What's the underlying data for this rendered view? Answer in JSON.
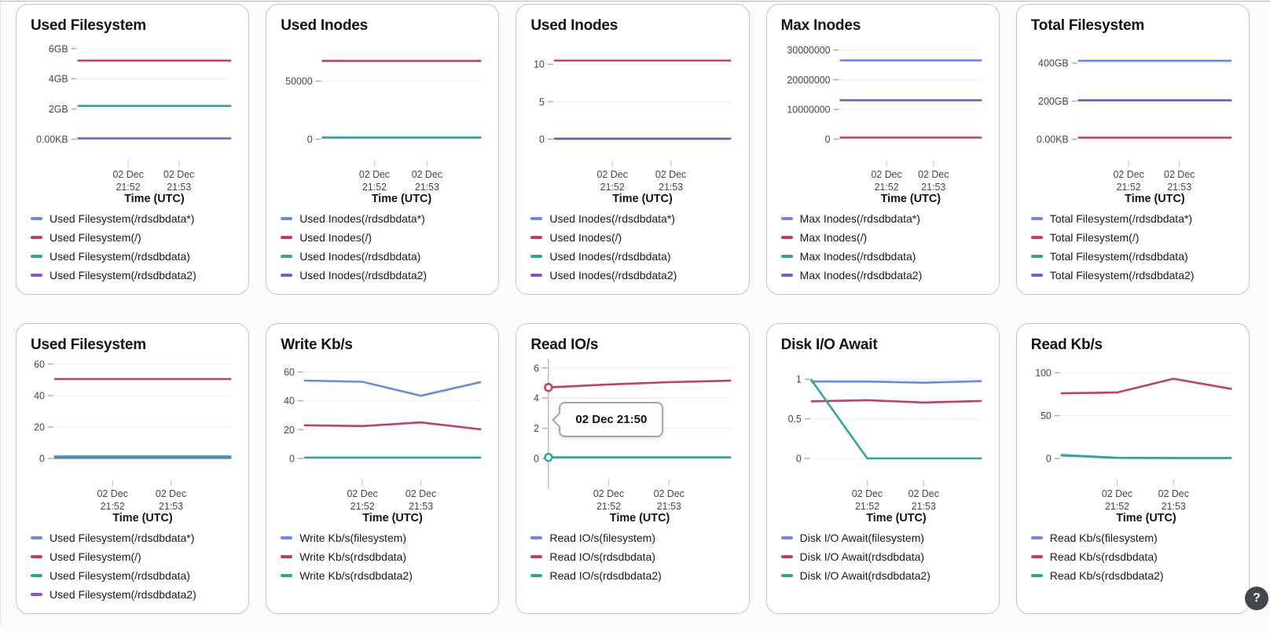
{
  "palette": {
    "blue": "#688AE8",
    "red": "#C33D69",
    "teal": "#2EA597",
    "purple": "#8456CE"
  },
  "x_axis": {
    "title": "Time (UTC)",
    "ticks": [
      {
        "line1": "02 Dec",
        "line2": "21:52"
      },
      {
        "line1": "02 Dec",
        "line2": "21:53"
      }
    ]
  },
  "help_button": {
    "label": "?"
  },
  "chart_data": [
    {
      "type": "line",
      "title": "Used Filesystem",
      "y_max": 6.3,
      "y_ticks": [
        {
          "label": "6GB",
          "value": 6
        },
        {
          "label": "4GB",
          "value": 4
        },
        {
          "label": "2GB",
          "value": 2
        },
        {
          "label": "0.00KB",
          "value": 0
        }
      ],
      "series": [
        {
          "name": "Used Filesystem(/rdsdbdata*)",
          "color": "blue",
          "z": 0,
          "values": [
            0.05,
            0.05,
            0.05,
            0.05
          ]
        },
        {
          "name": "Used Filesystem(/)",
          "color": "red",
          "z": 1,
          "values": [
            5.2,
            5.2,
            5.2,
            5.2
          ]
        },
        {
          "name": "Used Filesystem(/rdsdbdata)",
          "color": "teal",
          "z": 2,
          "values": [
            2.2,
            2.2,
            2.2,
            2.2
          ]
        },
        {
          "name": "Used Filesystem(/rdsdbdata2)",
          "color": "purple",
          "z": 3,
          "values": [
            0.05,
            0.05,
            0.05,
            0.05
          ]
        }
      ]
    },
    {
      "type": "line",
      "title": "Used Inodes",
      "y_max": 82000,
      "y_ticks": [
        {
          "label": "50000",
          "value": 50000
        },
        {
          "label": "0",
          "value": 0
        }
      ],
      "series": [
        {
          "name": "Used Inodes(/rdsdbdata*)",
          "color": "blue",
          "z": 0,
          "values": [
            1500,
            1500,
            1500,
            1500
          ]
        },
        {
          "name": "Used Inodes(/)",
          "color": "red",
          "z": 2,
          "values": [
            67500,
            67500,
            67500,
            67500
          ]
        },
        {
          "name": "Used Inodes(/rdsdbdata)",
          "color": "teal",
          "z": 3,
          "values": [
            1500,
            1500,
            1500,
            1500
          ]
        },
        {
          "name": "Used Inodes(/rdsdbdata2)",
          "color": "purple",
          "z": 1,
          "values": [
            1500,
            1500,
            1500,
            1500
          ]
        }
      ]
    },
    {
      "type": "line",
      "title": "Used Inodes",
      "y_max": 12.7,
      "y_ticks": [
        {
          "label": "10",
          "value": 10
        },
        {
          "label": "5",
          "value": 5
        },
        {
          "label": "0",
          "value": 0
        }
      ],
      "series": [
        {
          "name": "Used Inodes(/rdsdbdata*)",
          "color": "blue",
          "z": 0,
          "values": [
            0.07,
            0.07,
            0.07,
            0.07
          ]
        },
        {
          "name": "Used Inodes(/)",
          "color": "red",
          "z": 2,
          "values": [
            10.5,
            10.5,
            10.5,
            10.5
          ]
        },
        {
          "name": "Used Inodes(/rdsdbdata)",
          "color": "teal",
          "z": 1,
          "values": [
            0.07,
            0.07,
            0.07,
            0.07
          ]
        },
        {
          "name": "Used Inodes(/rdsdbdata2)",
          "color": "purple",
          "z": 3,
          "values": [
            0.07,
            0.07,
            0.07,
            0.07
          ]
        }
      ]
    },
    {
      "type": "line",
      "title": "Max Inodes",
      "y_max": 32000000,
      "y_ticks": [
        {
          "label": "30000000",
          "value": 30000000
        },
        {
          "label": "20000000",
          "value": 20000000
        },
        {
          "label": "10000000",
          "value": 10000000
        },
        {
          "label": "0",
          "value": 0
        }
      ],
      "series": [
        {
          "name": "Max Inodes(/rdsdbdata*)",
          "color": "blue",
          "z": 1,
          "values": [
            26500000,
            26500000,
            26500000,
            26500000
          ]
        },
        {
          "name": "Max Inodes(/)",
          "color": "red",
          "z": 2,
          "values": [
            550000,
            550000,
            550000,
            550000
          ]
        },
        {
          "name": "Max Inodes(/rdsdbdata)",
          "color": "teal",
          "z": 0,
          "values": [
            13100000,
            13100000,
            13100000,
            13100000
          ]
        },
        {
          "name": "Max Inodes(/rdsdbdata2)",
          "color": "purple",
          "z": 3,
          "values": [
            13100000,
            13100000,
            13100000,
            13100000
          ]
        }
      ]
    },
    {
      "type": "line",
      "title": "Total Filesystem",
      "y_max": 500,
      "y_ticks": [
        {
          "label": "400GB",
          "value": 400
        },
        {
          "label": "200GB",
          "value": 200
        },
        {
          "label": "0.00KB",
          "value": 0
        }
      ],
      "series": [
        {
          "name": "Total Filesystem(/rdsdbdata*)",
          "color": "blue",
          "z": 1,
          "values": [
            412,
            412,
            412,
            412
          ]
        },
        {
          "name": "Total Filesystem(/)",
          "color": "red",
          "z": 2,
          "values": [
            8,
            8,
            8,
            8
          ]
        },
        {
          "name": "Total Filesystem(/rdsdbdata)",
          "color": "teal",
          "z": 0,
          "values": [
            204,
            204,
            204,
            204
          ]
        },
        {
          "name": "Total Filesystem(/rdsdbdata2)",
          "color": "purple",
          "z": 3,
          "values": [
            204,
            204,
            204,
            204
          ]
        }
      ]
    },
    {
      "type": "line",
      "title": "Used Filesystem",
      "y_max": 60.5,
      "y_ticks": [
        {
          "label": "60",
          "value": 60
        },
        {
          "label": "40",
          "value": 40
        },
        {
          "label": "20",
          "value": 20
        },
        {
          "label": "0",
          "value": 0
        }
      ],
      "series": [
        {
          "name": "Used Filesystem(/rdsdbdata*)",
          "color": "blue",
          "z": 1,
          "values": [
            0.9,
            0.9,
            0.9,
            0.9
          ]
        },
        {
          "name": "Used Filesystem(/)",
          "color": "red",
          "z": 2,
          "values": [
            50.5,
            50.5,
            50.5,
            50.5
          ]
        },
        {
          "name": "Used Filesystem(/rdsdbdata)",
          "color": "teal",
          "z": 3,
          "values": [
            1.3,
            1.3,
            1.3,
            1.3
          ]
        },
        {
          "name": "Used Filesystem(/rdsdbdata2)",
          "color": "purple",
          "z": 0,
          "values": [
            0.35,
            0.35,
            0.35,
            0.35
          ]
        }
      ]
    },
    {
      "type": "line",
      "title": "Write Kb/s",
      "y_max": 66,
      "y_ticks": [
        {
          "label": "60",
          "value": 60
        },
        {
          "label": "40",
          "value": 40
        },
        {
          "label": "20",
          "value": 20
        },
        {
          "label": "0",
          "value": 0
        }
      ],
      "series": [
        {
          "name": "Write Kb/s(filesystem)",
          "color": "blue",
          "z": 0,
          "values": [
            54,
            53.2,
            43.5,
            53
          ]
        },
        {
          "name": "Write Kb/s(rdsdbdata)",
          "color": "red",
          "z": 1,
          "values": [
            23,
            22.5,
            25,
            20.2
          ]
        },
        {
          "name": "Write Kb/s(rdsdbdata2)",
          "color": "teal",
          "z": 2,
          "values": [
            0.6,
            0.6,
            0.6,
            0.6
          ]
        }
      ]
    },
    {
      "type": "line",
      "title": "Read IO/s",
      "y_max": 6.3,
      "y_ticks": [
        {
          "label": "6",
          "value": 6
        },
        {
          "label": "4",
          "value": 4
        },
        {
          "label": "2",
          "value": 2
        },
        {
          "label": "0",
          "value": 0
        }
      ],
      "series": [
        {
          "name": "Read IO/s(filesystem)",
          "color": "blue",
          "z": 0,
          "values": [
            0.07,
            0.07,
            0.07,
            0.07
          ]
        },
        {
          "name": "Read IO/s(rdsdbdata)",
          "color": "red",
          "z": 1,
          "values": [
            4.7,
            4.9,
            5.05,
            5.15
          ]
        },
        {
          "name": "Read IO/s(rdsdbdata2)",
          "color": "teal",
          "z": 2,
          "values": [
            0.07,
            0.07,
            0.07,
            0.07
          ]
        }
      ],
      "markers": [
        {
          "series": 1,
          "point": 0
        },
        {
          "series": 2,
          "point": 0
        }
      ],
      "crosshair_fraction": 0,
      "tooltip": "02 Dec 21:50"
    },
    {
      "type": "line",
      "title": "Disk I/O Await",
      "y_max": 1.2,
      "y_ticks": [
        {
          "label": "1",
          "value": 1
        },
        {
          "label": "0.5",
          "value": 0.5
        },
        {
          "label": "0",
          "value": 0
        }
      ],
      "series": [
        {
          "name": "Disk I/O Await(filesystem)",
          "color": "blue",
          "z": 0,
          "values": [
            0.97,
            0.97,
            0.955,
            0.975
          ]
        },
        {
          "name": "Disk I/O Await(rdsdbdata)",
          "color": "red",
          "z": 1,
          "values": [
            0.72,
            0.735,
            0.705,
            0.725
          ]
        },
        {
          "name": "Disk I/O Await(rdsdbdata2)",
          "color": "teal",
          "z": 2,
          "values": [
            1.0,
            0,
            0,
            0
          ]
        }
      ]
    },
    {
      "type": "line",
      "title": "Read Kb/s",
      "y_max": 111,
      "y_ticks": [
        {
          "label": "100",
          "value": 100
        },
        {
          "label": "50",
          "value": 50
        },
        {
          "label": "0",
          "value": 0
        }
      ],
      "series": [
        {
          "name": "Read Kb/s(filesystem)",
          "color": "blue",
          "z": 0,
          "values": [
            3.5,
            0.6,
            0.5,
            0.5
          ]
        },
        {
          "name": "Read Kb/s(rdsdbdata)",
          "color": "red",
          "z": 1,
          "values": [
            76,
            77,
            93,
            81
          ]
        },
        {
          "name": "Read Kb/s(rdsdbdata2)",
          "color": "teal",
          "z": 2,
          "values": [
            4,
            0.7,
            0.5,
            0.5
          ]
        }
      ]
    }
  ]
}
